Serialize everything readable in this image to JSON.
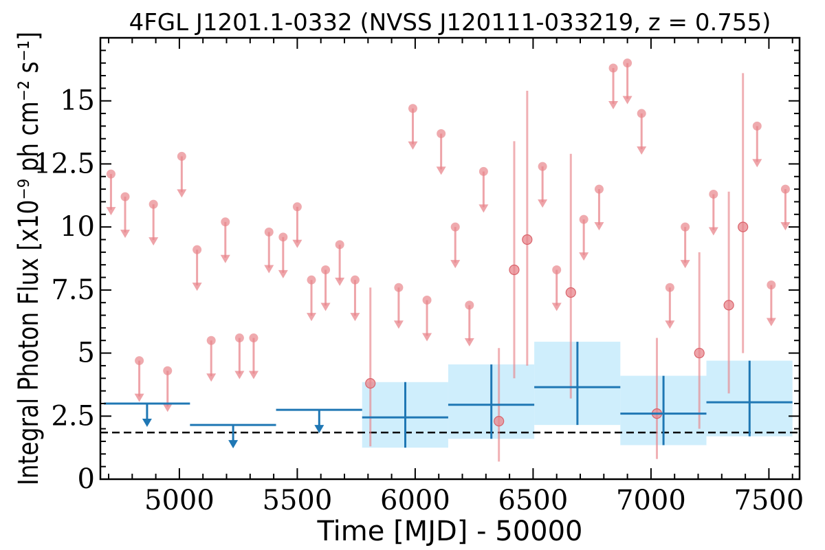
{
  "chart_data": {
    "type": "scatter",
    "title": "4FGL J1201.1-0332 (NVSS J120111-033219, z = 0.755)",
    "xlabel": "Time [MJD] - 50000",
    "ylabel": "Integral Photon Flux [x10⁻⁹ ph cm⁻² s⁻¹]",
    "xlim": [
      4665,
      7630
    ],
    "ylim": [
      0,
      17.5
    ],
    "xticks": [
      "5000",
      "5500",
      "6000",
      "6500",
      "7000",
      "7500"
    ],
    "yticks": [
      "0",
      "2.5",
      "5",
      "7.5",
      "10",
      "12.5",
      "15"
    ],
    "reference_line": 1.85,
    "colors": {
      "monthly": "#e8868c",
      "yearly": "#1f77b4",
      "band": "#cfeefc",
      "reference": "#000000"
    },
    "series": [
      {
        "kind": "monthly_upper_limits",
        "x": [
          4710,
          4770,
          4830,
          4890,
          4950,
          5010,
          5075,
          5135,
          5195,
          5255,
          5315,
          5380,
          5440,
          5500,
          5560,
          5620,
          5680,
          5745,
          5930,
          5990,
          6050,
          6110,
          6170,
          6230,
          6290,
          6540,
          6600,
          6715,
          6780,
          6840,
          6900,
          6960,
          7080,
          7145,
          7265,
          7450,
          7510,
          7570
        ],
        "y": [
          12.1,
          11.2,
          4.7,
          10.9,
          4.3,
          12.8,
          9.1,
          5.5,
          10.2,
          5.6,
          5.6,
          9.8,
          9.6,
          10.8,
          7.9,
          8.3,
          9.3,
          7.9,
          7.6,
          14.7,
          7.1,
          13.7,
          10.0,
          6.9,
          12.2,
          12.4,
          8.3,
          10.3,
          11.5,
          16.3,
          16.5,
          14.5,
          7.6,
          10.0,
          11.3,
          14.0,
          7.7,
          11.5
        ]
      },
      {
        "kind": "monthly_detections",
        "x": [
          5810,
          6355,
          6420,
          6475,
          6660,
          7025,
          7205,
          7330,
          7390
        ],
        "y": [
          3.8,
          2.3,
          8.3,
          9.5,
          7.4,
          2.6,
          5.0,
          6.9,
          10.0
        ],
        "y_low": [
          1.3,
          0.7,
          4.0,
          4.5,
          3.2,
          0.8,
          2.0,
          3.4,
          5.0
        ],
        "y_high": [
          7.6,
          5.2,
          13.4,
          15.4,
          12.9,
          5.6,
          9.0,
          11.4,
          16.1
        ]
      },
      {
        "kind": "yearly_upper_limits",
        "x": [
          4863,
          5228,
          5593
        ],
        "x_low": [
          4680,
          5045,
          5410
        ],
        "x_high": [
          5045,
          5410,
          5775
        ],
        "y": [
          3.0,
          2.15,
          2.75
        ]
      },
      {
        "kind": "yearly_detections",
        "x": [
          5958,
          6323,
          6688,
          7053,
          7418
        ],
        "x_low": [
          5775,
          6140,
          6505,
          6870,
          7235
        ],
        "x_high": [
          6140,
          6505,
          6870,
          7235,
          7600
        ],
        "y": [
          2.45,
          2.95,
          3.65,
          2.6,
          3.05
        ],
        "y_low": [
          1.25,
          1.6,
          2.15,
          1.35,
          1.7
        ],
        "y_high": [
          3.85,
          4.55,
          5.45,
          4.1,
          4.7
        ]
      }
    ]
  }
}
